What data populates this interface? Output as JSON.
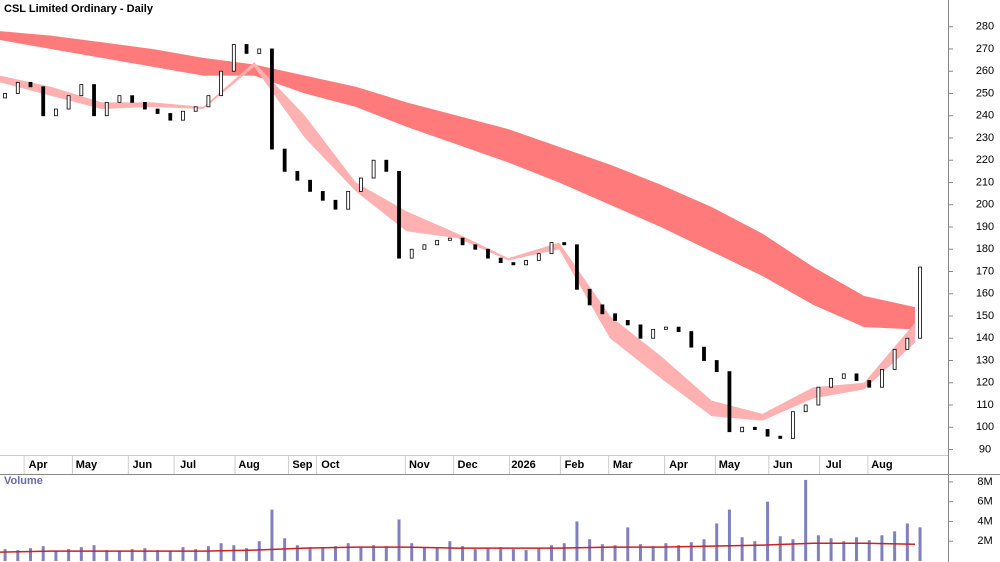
{
  "chart_data": [
    {
      "type": "candlestick",
      "title": "CSL Limited Ordinary - Daily",
      "x": [
        2,
        7,
        12,
        17,
        22,
        27,
        32,
        37,
        42,
        47,
        52,
        57,
        62,
        67,
        72,
        77,
        82,
        87,
        92,
        97,
        102,
        107,
        112,
        117,
        122,
        127,
        132,
        137,
        142,
        147,
        152,
        157,
        162,
        167,
        172,
        177,
        182,
        187,
        192,
        197,
        202,
        207,
        212,
        217,
        222,
        227,
        232,
        237,
        242,
        247,
        252,
        257,
        262,
        267,
        272,
        277,
        282,
        287,
        292,
        297,
        302,
        307,
        312,
        317,
        322,
        327,
        332,
        337,
        342,
        347,
        352,
        357,
        362
      ],
      "open": [
        248,
        250,
        255,
        253,
        240,
        243,
        249,
        254,
        240,
        246,
        249,
        246,
        243,
        241,
        238,
        242,
        244,
        249,
        260,
        272,
        268,
        270,
        225,
        215,
        211,
        206,
        202,
        198,
        206,
        212,
        220,
        215,
        176,
        180,
        182,
        184,
        185,
        182,
        180,
        176,
        174,
        173,
        175,
        178,
        183,
        182,
        162,
        155,
        151,
        148,
        146,
        140,
        144,
        145,
        143,
        136,
        130,
        125,
        98,
        100,
        99,
        96,
        95,
        107,
        110,
        118,
        122,
        124,
        121,
        118,
        126,
        135,
        140
      ],
      "close": [
        250,
        255,
        253,
        240,
        243,
        249,
        254,
        240,
        246,
        249,
        246,
        243,
        241,
        238,
        242,
        244,
        249,
        260,
        272,
        268,
        270,
        225,
        215,
        211,
        206,
        202,
        198,
        206,
        212,
        220,
        215,
        176,
        180,
        182,
        184,
        185,
        182,
        180,
        176,
        174,
        173,
        175,
        178,
        183,
        182,
        162,
        155,
        151,
        148,
        146,
        140,
        144,
        145,
        143,
        136,
        130,
        125,
        98,
        100,
        99,
        96,
        95,
        107,
        110,
        118,
        122,
        124,
        121,
        118,
        126,
        135,
        140,
        172
      ],
      "up_color": "#ffffff",
      "down_color": "#000000",
      "bands": [
        {
          "color": "#ff7b7b",
          "x": [
            0,
            20,
            40,
            60,
            80,
            100,
            120,
            140,
            160,
            180,
            200,
            220,
            240,
            260,
            280,
            300,
            320,
            340,
            360
          ],
          "upper": [
            278,
            276,
            273,
            270,
            266,
            263,
            258,
            253,
            246,
            240,
            234,
            226,
            218,
            209,
            199,
            187,
            172,
            159,
            154
          ],
          "lower": [
            274,
            270,
            266,
            262,
            258,
            258,
            250,
            244,
            235,
            227,
            219,
            210,
            200,
            190,
            179,
            168,
            155,
            145,
            144
          ]
        },
        {
          "color": "#ffb0b0",
          "x": [
            0,
            20,
            40,
            60,
            80,
            100,
            120,
            140,
            160,
            180,
            200,
            220,
            240,
            260,
            280,
            300,
            320,
            340,
            360
          ],
          "upper": [
            258,
            253,
            246,
            246,
            244,
            264,
            240,
            210,
            197,
            187,
            176,
            183,
            150,
            132,
            112,
            106,
            118,
            120,
            147
          ],
          "lower": [
            255,
            249,
            243,
            244,
            243,
            262,
            230,
            206,
            188,
            185,
            175,
            180,
            140,
            122,
            105,
            103,
            113,
            117,
            138
          ]
        }
      ],
      "xlim": [
        0,
        373
      ],
      "xticks": [
        {
          "value": 15,
          "label": "Apr"
        },
        {
          "value": 34,
          "label": "May"
        },
        {
          "value": 56,
          "label": "Jun"
        },
        {
          "value": 74,
          "label": "Jul"
        },
        {
          "value": 98,
          "label": "Aug"
        },
        {
          "value": 119,
          "label": "Sep"
        },
        {
          "value": 130,
          "label": "Oct"
        },
        {
          "value": 165,
          "label": "Nov"
        },
        {
          "value": 184,
          "label": "Dec"
        },
        {
          "value": 206,
          "label": "2026"
        },
        {
          "value": 226,
          "label": "Feb"
        },
        {
          "value": 245,
          "label": "Mar"
        },
        {
          "value": 267,
          "label": "Apr"
        },
        {
          "value": 287,
          "label": "May"
        },
        {
          "value": 308,
          "label": "Jun"
        },
        {
          "value": 328,
          "label": "Jul"
        },
        {
          "value": 347,
          "label": "Aug"
        }
      ],
      "ylim": [
        79,
        292
      ],
      "yticks": [
        90,
        100,
        110,
        120,
        130,
        140,
        150,
        160,
        170,
        180,
        190,
        200,
        210,
        220,
        230,
        240,
        250,
        260,
        270,
        280
      ]
    },
    {
      "type": "bar",
      "title": "Volume",
      "color": "#8080c0",
      "x": [
        2,
        7,
        12,
        17,
        22,
        27,
        32,
        37,
        42,
        47,
        52,
        57,
        62,
        67,
        72,
        77,
        82,
        87,
        92,
        97,
        102,
        107,
        112,
        117,
        122,
        127,
        132,
        137,
        142,
        147,
        152,
        157,
        162,
        167,
        172,
        177,
        182,
        187,
        192,
        197,
        202,
        207,
        212,
        217,
        222,
        227,
        232,
        237,
        242,
        247,
        252,
        257,
        262,
        267,
        272,
        277,
        282,
        287,
        292,
        297,
        302,
        307,
        312,
        317,
        322,
        327,
        332,
        337,
        342,
        347,
        352,
        357,
        362
      ],
      "values": [
        1.2,
        1.1,
        1.3,
        1.5,
        1.0,
        1.2,
        1.4,
        1.6,
        1.1,
        1.0,
        1.2,
        1.3,
        1.1,
        1.0,
        1.4,
        1.2,
        1.5,
        1.8,
        1.6,
        1.3,
        2.0,
        5.2,
        2.3,
        1.6,
        1.4,
        1.3,
        1.5,
        1.8,
        1.4,
        1.6,
        1.5,
        4.2,
        1.8,
        1.4,
        1.3,
        2.0,
        1.5,
        1.2,
        1.3,
        1.4,
        1.2,
        1.1,
        1.3,
        1.6,
        1.8,
        4.0,
        2.2,
        1.7,
        1.6,
        3.4,
        1.7,
        1.5,
        1.8,
        1.6,
        1.9,
        2.2,
        3.8,
        5.2,
        2.4,
        2.0,
        6.0,
        2.5,
        2.2,
        8.2,
        2.6,
        2.3,
        2.0,
        2.4,
        2.1,
        2.6,
        3.0,
        3.8,
        3.4
      ],
      "average": {
        "color": "#cc2222",
        "x": [
          0,
          20,
          40,
          60,
          80,
          100,
          120,
          140,
          160,
          180,
          200,
          220,
          240,
          260,
          280,
          300,
          320,
          340,
          360
        ],
        "values": [
          0.9,
          1,
          1,
          1,
          1,
          1.1,
          1.3,
          1.4,
          1.4,
          1.3,
          1.3,
          1.3,
          1.4,
          1.4,
          1.5,
          1.6,
          1.8,
          1.8,
          1.7
        ]
      },
      "xlim": [
        0,
        373
      ],
      "ylim": [
        0,
        8.8
      ],
      "yticks": [
        {
          "value": 2,
          "label": "2M"
        },
        {
          "value": 4,
          "label": "4M"
        },
        {
          "value": 6,
          "label": "6M"
        },
        {
          "value": 8,
          "label": "8M"
        }
      ]
    }
  ]
}
